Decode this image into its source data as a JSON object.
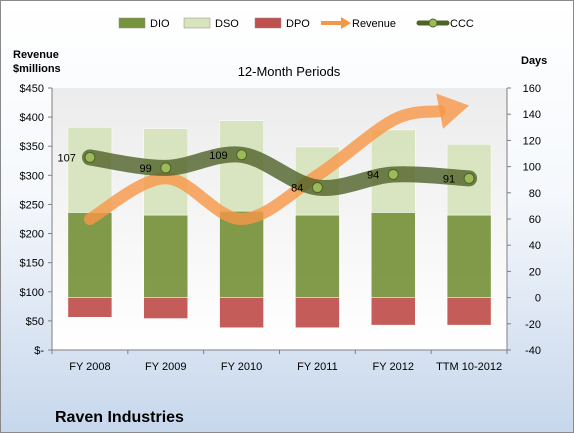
{
  "chart_data": {
    "type": "bar",
    "title": "12-Month Periods",
    "company": "Raven Industries",
    "y_left_label": [
      "Revenue",
      "$millions"
    ],
    "y_right_label": "Days",
    "categories": [
      "FY 2008",
      "FY 2009",
      "FY 2010",
      "FY 2011",
      "FY 2012",
      "TTM 10-2012"
    ],
    "left_axis": {
      "min": 0,
      "max": 450,
      "step": 50,
      "ticks": [
        "$-",
        "$50",
        "$100",
        "$150",
        "$200",
        "$250",
        "$300",
        "$350",
        "$400",
        "$450"
      ]
    },
    "right_axis": {
      "min": -40,
      "max": 160,
      "step": 20,
      "ticks": [
        "-40",
        "-20",
        "0",
        "20",
        "40",
        "60",
        "80",
        "100",
        "120",
        "140",
        "160"
      ]
    },
    "grid": false,
    "legend_position": "top",
    "legend": [
      {
        "name": "DIO",
        "kind": "bar",
        "color": "#77933c"
      },
      {
        "name": "DSO",
        "kind": "bar",
        "color": "#d7e4bc"
      },
      {
        "name": "DPO",
        "kind": "bar",
        "color": "#c0504d"
      },
      {
        "name": "Revenue",
        "kind": "arrow",
        "color": "#f79646"
      },
      {
        "name": "CCC",
        "kind": "line",
        "color": "#4f6228"
      }
    ],
    "series": [
      {
        "name": "DIO",
        "axis": "right",
        "values": [
          65,
          63,
          66,
          63,
          65,
          63
        ]
      },
      {
        "name": "DSO",
        "axis": "right",
        "values": [
          65,
          66,
          69,
          52,
          63,
          54
        ]
      },
      {
        "name": "DPO",
        "axis": "right",
        "values": [
          -15,
          -16,
          -23,
          -23,
          -21,
          -21
        ]
      },
      {
        "name": "CCC",
        "axis": "right",
        "values": [
          107,
          99,
          109,
          84,
          94,
          91
        ],
        "data_labels": [
          "107",
          "99",
          "109",
          "84",
          "94",
          "91"
        ]
      },
      {
        "name": "Revenue",
        "axis": "left",
        "values": [
          225,
          295,
          225,
          300,
          395,
          420
        ]
      }
    ]
  }
}
